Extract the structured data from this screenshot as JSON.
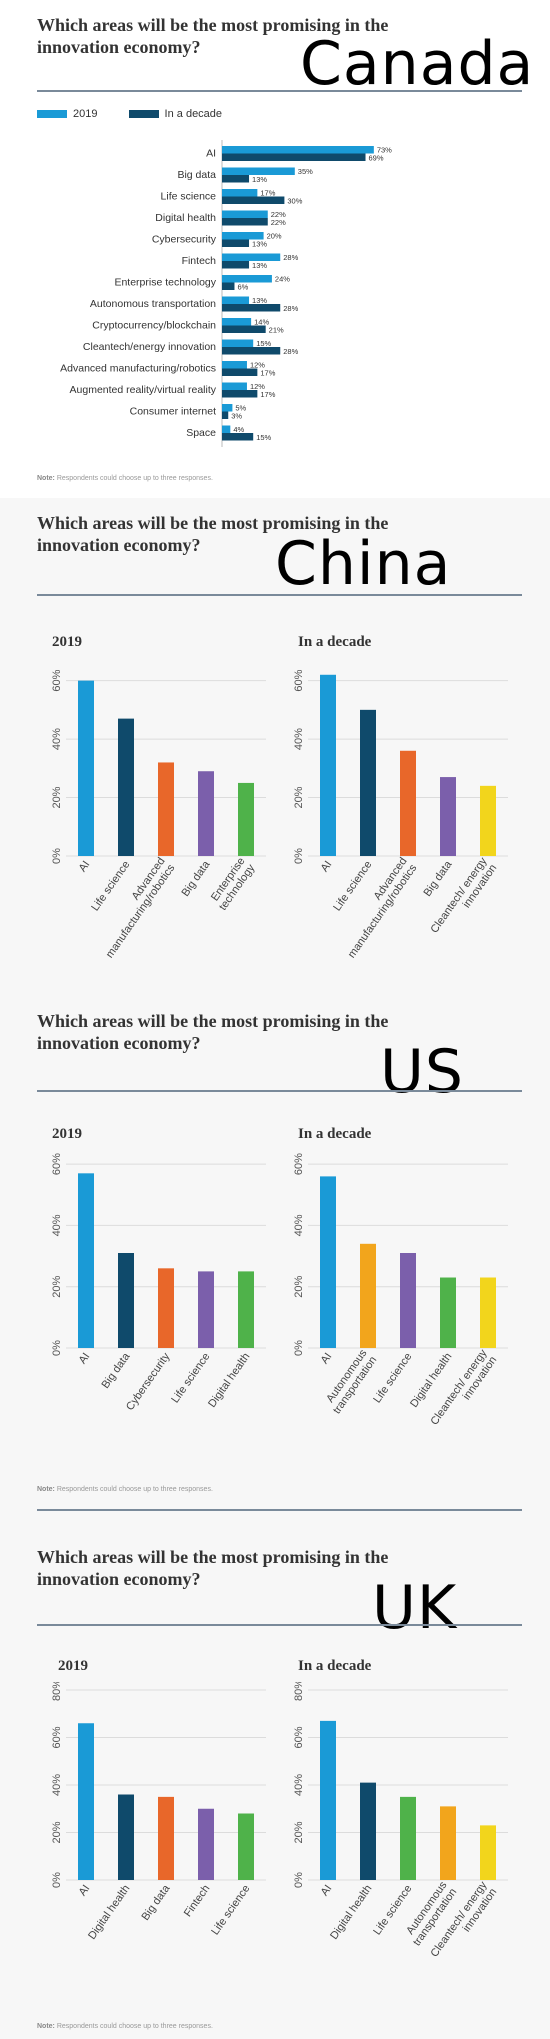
{
  "colors": {
    "c2019": "#1a9ad6",
    "decade": "#0f4a6b",
    "orange": "#e8672a",
    "purple": "#7b5fab",
    "green": "#4fb24a",
    "yellow": "#f2d51c",
    "amber": "#f2a51c"
  },
  "canada": {
    "title": "Which areas will be the most promising in the innovation economy?",
    "label": "Canada",
    "legend_2019": "2019",
    "legend_decade": "In a decade",
    "note_bold": "Note:",
    "note": " Respondents could choose up to three responses."
  },
  "china": {
    "title": "Which areas will be the most promising in the innovation economy?",
    "label": "China",
    "sub_left": "2019",
    "sub_right": "In a decade"
  },
  "us": {
    "title": "Which areas will be the most promising in the innovation economy?",
    "label": "US",
    "sub_left": "2019",
    "sub_right": "In a decade",
    "note_bold": "Note:",
    "note": " Respondents could choose up to three responses."
  },
  "uk": {
    "title": "Which areas will be the most promising in the innovation economy?",
    "label": "UK",
    "sub_left": "2019",
    "sub_right": "In a decade",
    "note_bold": "Note:",
    "note": " Respondents could choose up to three responses."
  },
  "chart_data": [
    {
      "id": "canada",
      "type": "bar",
      "orientation": "horizontal",
      "categories": [
        "AI",
        "Big data",
        "Life science",
        "Digital health",
        "Cybersecurity",
        "Fintech",
        "Enterprise technology",
        "Autonomous transportation",
        "Cryptocurrency/blockchain",
        "Cleantech/energy innovation",
        "Advanced manufacturing/robotics",
        "Augmented reality/virtual reality",
        "Consumer internet",
        "Space"
      ],
      "series": [
        {
          "name": "2019",
          "values": [
            73,
            35,
            17,
            22,
            20,
            28,
            24,
            13,
            14,
            15,
            12,
            12,
            5,
            4
          ]
        },
        {
          "name": "In a decade",
          "values": [
            69,
            13,
            30,
            22,
            13,
            13,
            6,
            28,
            21,
            28,
            17,
            17,
            3,
            15
          ]
        }
      ],
      "value_labels": {
        "2019": [
          "73%",
          "35%",
          "17%",
          "22%",
          "20%",
          "28%",
          "24%",
          "13%",
          "14%",
          "15%",
          "12%",
          "12%",
          "5%",
          "4%"
        ],
        "In a decade": [
          "69%",
          "13%",
          "30%",
          "22%",
          "13%",
          "13%",
          "6%",
          "28%",
          "21%",
          "28%",
          "17%",
          "17%",
          "3%",
          "15%"
        ]
      },
      "legend": "top-left"
    },
    {
      "id": "china-2019",
      "type": "bar",
      "categories": [
        "AI",
        "Life science",
        "Advanced manufacturing/robotics",
        "Big data",
        "Enterprise technology"
      ],
      "values": [
        60,
        47,
        32,
        29,
        25
      ],
      "bar_colors": [
        "#1a9ad6",
        "#0f4a6b",
        "#e8672a",
        "#7b5fab",
        "#4fb24a"
      ],
      "yticks": [
        "0%",
        "20%",
        "40%",
        "60%"
      ],
      "ylim": [
        0,
        65
      ]
    },
    {
      "id": "china-decade",
      "type": "bar",
      "categories": [
        "AI",
        "Life science",
        "Advanced manufacturing/robotics",
        "Big data",
        "Cleantech/ energy innovation"
      ],
      "values": [
        62,
        50,
        36,
        27,
        24
      ],
      "bar_colors": [
        "#1a9ad6",
        "#0f4a6b",
        "#e8672a",
        "#7b5fab",
        "#f2d51c"
      ],
      "yticks": [
        "0%",
        "20%",
        "40%",
        "60%"
      ],
      "ylim": [
        0,
        65
      ]
    },
    {
      "id": "us-2019",
      "type": "bar",
      "categories": [
        "AI",
        "Big data",
        "Cybersecurity",
        "Life science",
        "Digital health"
      ],
      "values": [
        57,
        31,
        26,
        25,
        25
      ],
      "bar_colors": [
        "#1a9ad6",
        "#0f4a6b",
        "#e8672a",
        "#7b5fab",
        "#4fb24a"
      ],
      "yticks": [
        "0%",
        "20%",
        "40%",
        "60%"
      ],
      "ylim": [
        0,
        62
      ]
    },
    {
      "id": "us-decade",
      "type": "bar",
      "categories": [
        "AI",
        "Autonomous transportation",
        "Life science",
        "Digital health",
        "Cleantech/ energy innovation"
      ],
      "values": [
        56,
        34,
        31,
        23,
        23
      ],
      "bar_colors": [
        "#1a9ad6",
        "#f2a51c",
        "#7b5fab",
        "#4fb24a",
        "#f2d51c"
      ],
      "yticks": [
        "0%",
        "20%",
        "40%",
        "60%"
      ],
      "ylim": [
        0,
        62
      ]
    },
    {
      "id": "uk-2019",
      "type": "bar",
      "categories": [
        "AI",
        "Digital health",
        "Big data",
        "Fintech",
        "Life science"
      ],
      "values": [
        66,
        36,
        35,
        30,
        28
      ],
      "bar_colors": [
        "#1a9ad6",
        "#0f4a6b",
        "#e8672a",
        "#7b5fab",
        "#4fb24a"
      ],
      "yticks": [
        "0%",
        "20%",
        "40%",
        "60%",
        "80%"
      ],
      "ylim": [
        0,
        80
      ]
    },
    {
      "id": "uk-decade",
      "type": "bar",
      "categories": [
        "AI",
        "Digital health",
        "Life science",
        "Autonomous transportation",
        "Cleantech/ energy innovation"
      ],
      "values": [
        67,
        41,
        35,
        31,
        23
      ],
      "bar_colors": [
        "#1a9ad6",
        "#0f4a6b",
        "#4fb24a",
        "#f2a51c",
        "#f2d51c"
      ],
      "yticks": [
        "0%",
        "20%",
        "40%",
        "60%",
        "80%"
      ],
      "ylim": [
        0,
        80
      ]
    }
  ]
}
